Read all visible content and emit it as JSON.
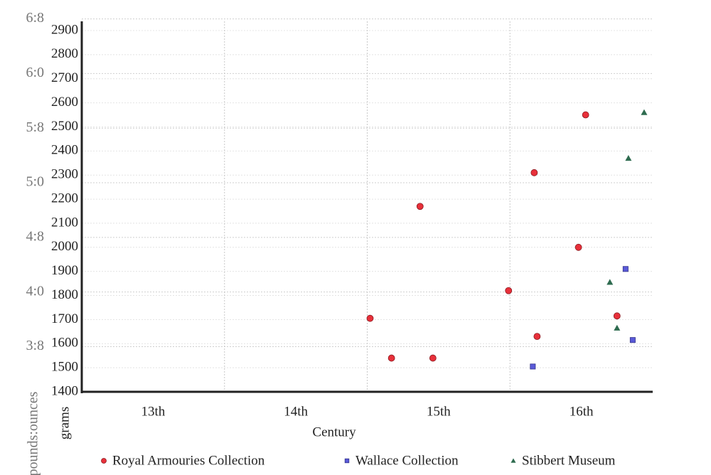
{
  "chart_data": {
    "type": "scatter",
    "x_label": "Century",
    "y_label": "grams",
    "y2_label": "pounds:ounces",
    "xlim": [
      1200,
      1600
    ],
    "xticks": [
      {
        "value": 1250,
        "label": "13th"
      },
      {
        "value": 1350,
        "label": "14th"
      },
      {
        "value": 1450,
        "label": "15th"
      },
      {
        "value": 1550,
        "label": "16th"
      }
    ],
    "xgrid": [
      1300,
      1400,
      1500
    ],
    "ylim": [
      1400,
      2900
    ],
    "yticks": [
      1400,
      1500,
      1600,
      1700,
      1800,
      1900,
      2000,
      2100,
      2200,
      2300,
      2400,
      2500,
      2600,
      2700,
      2800,
      2900
    ],
    "y2lim": [
      3.0865,
      6.3934
    ],
    "y2ticks": [
      {
        "value": 3.5,
        "label": "3:8"
      },
      {
        "value": 4,
        "label": "4:0"
      },
      {
        "value": 4.5,
        "label": "4:8"
      },
      {
        "value": 5,
        "label": "5:0"
      },
      {
        "value": 5.5,
        "label": "5:8"
      },
      {
        "value": 6,
        "label": "6:0"
      },
      {
        "value": 6.5,
        "label": "6:8"
      }
    ],
    "legend": "bottom",
    "series": [
      {
        "name": "Royal Armouries Collection",
        "color": "#e8303a",
        "marker": "circle",
        "x": [
          1402,
          1417,
          1446,
          1437,
          1499,
          1517,
          1519,
          1548,
          1553,
          1575
        ],
        "values": [
          1705,
          1540,
          1540,
          2170,
          1820,
          2310,
          1630,
          2000,
          2550,
          1715
        ]
      },
      {
        "name": "Wallace Collection",
        "color": "#5a5ad8",
        "marker": "square",
        "x": [
          1516,
          1581,
          1586
        ],
        "values": [
          1505,
          1910,
          1615
        ]
      },
      {
        "name": "Stibbert Museum",
        "color": "#2e6b4f",
        "marker": "triangle",
        "x": [
          1594,
          1583,
          1570,
          1575
        ],
        "values": [
          2560,
          2370,
          1855,
          1665
        ]
      }
    ]
  }
}
